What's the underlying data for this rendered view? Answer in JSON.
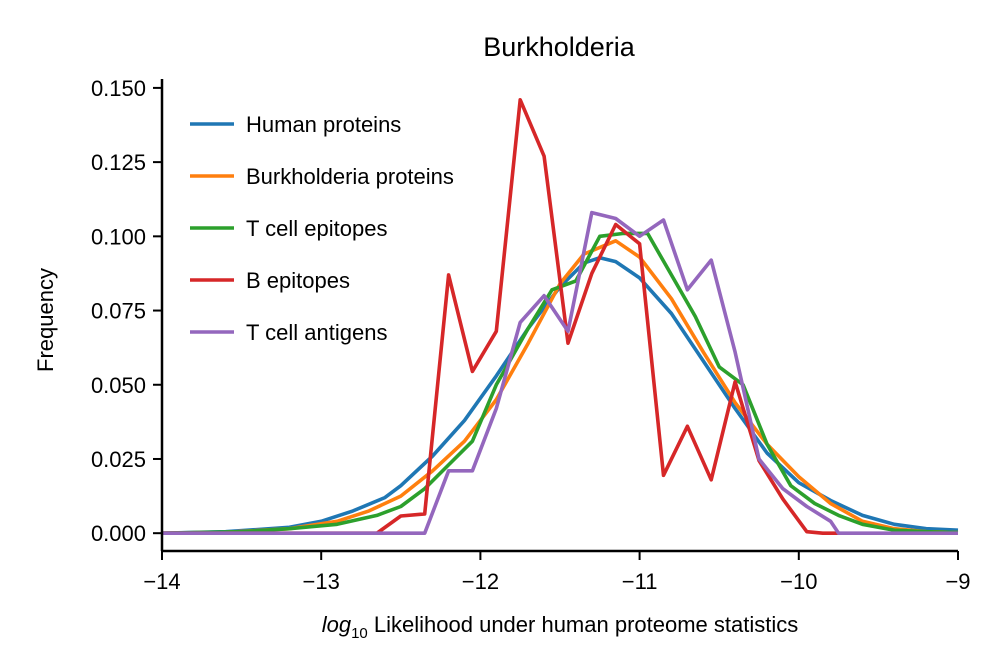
{
  "chart_data": {
    "type": "line",
    "title": "Burkholderia",
    "xlabel": {
      "prefix": "log",
      "subscript": "10",
      "text": " Likelihood under human proteome statistics"
    },
    "ylabel": "Frequency",
    "xlim": [
      -14,
      -9
    ],
    "ylim": [
      -0.006,
      0.153
    ],
    "xticks": [
      -14,
      -13,
      -12,
      -11,
      -10,
      -9
    ],
    "xtick_labels": [
      "−14",
      "−13",
      "−12",
      "−11",
      "−10",
      "−9"
    ],
    "yticks": [
      0.0,
      0.025,
      0.05,
      0.075,
      0.1,
      0.125,
      0.15
    ],
    "ytick_labels": [
      "0.000",
      "0.025",
      "0.050",
      "0.075",
      "0.100",
      "0.125",
      "0.150"
    ],
    "grid": false,
    "legend_position": "upper-left",
    "series": [
      {
        "name": "Human proteins",
        "color": "#1f77b4",
        "x": [
          -14,
          -13.6,
          -13.2,
          -13.0,
          -12.8,
          -12.6,
          -12.5,
          -12.3,
          -12.1,
          -11.9,
          -11.7,
          -11.5,
          -11.35,
          -11.25,
          -11.15,
          -11.0,
          -10.8,
          -10.6,
          -10.4,
          -10.2,
          -10.0,
          -9.8,
          -9.6,
          -9.4,
          -9.2,
          -9.0
        ],
        "y": [
          0,
          0.0005,
          0.002,
          0.004,
          0.0075,
          0.012,
          0.016,
          0.026,
          0.038,
          0.053,
          0.069,
          0.083,
          0.091,
          0.0928,
          0.0915,
          0.086,
          0.074,
          0.058,
          0.042,
          0.027,
          0.017,
          0.011,
          0.006,
          0.003,
          0.0015,
          0.001
        ]
      },
      {
        "name": "Burkholderia proteins",
        "color": "#ff7f0e",
        "x": [
          -14,
          -13.6,
          -13.2,
          -12.9,
          -12.7,
          -12.5,
          -12.3,
          -12.1,
          -11.9,
          -11.7,
          -11.5,
          -11.35,
          -11.15,
          -11.0,
          -10.8,
          -10.6,
          -10.4,
          -10.2,
          -10.0,
          -9.8,
          -9.6,
          -9.4,
          -9.2,
          -9.0
        ],
        "y": [
          0,
          0.0003,
          0.0015,
          0.004,
          0.0075,
          0.0125,
          0.021,
          0.031,
          0.045,
          0.064,
          0.084,
          0.094,
          0.0985,
          0.093,
          0.079,
          0.061,
          0.044,
          0.03,
          0.019,
          0.01,
          0.004,
          0.0015,
          0.0005,
          0.0002
        ]
      },
      {
        "name": "T cell epitopes",
        "color": "#2ca02c",
        "x": [
          -14,
          -13.5,
          -13.2,
          -12.9,
          -12.65,
          -12.5,
          -12.35,
          -12.2,
          -12.05,
          -11.9,
          -11.7,
          -11.55,
          -11.4,
          -11.25,
          -11.1,
          -10.95,
          -10.8,
          -10.65,
          -10.5,
          -10.35,
          -10.2,
          -10.05,
          -9.9,
          -9.75,
          -9.6,
          -9.4,
          -9.2,
          -9.0
        ],
        "y": [
          0,
          0.0005,
          0.0015,
          0.003,
          0.006,
          0.009,
          0.015,
          0.023,
          0.031,
          0.05,
          0.069,
          0.082,
          0.085,
          0.1,
          0.101,
          0.101,
          0.087,
          0.073,
          0.056,
          0.05,
          0.03,
          0.016,
          0.01,
          0.006,
          0.003,
          0.001,
          0.0005,
          0.0002
        ]
      },
      {
        "name": "B epitopes",
        "color": "#d62728",
        "x": [
          -14,
          -12.65,
          -12.5,
          -12.35,
          -12.2,
          -12.05,
          -11.9,
          -11.75,
          -11.6,
          -11.45,
          -11.3,
          -11.15,
          -11.0,
          -10.85,
          -10.7,
          -10.55,
          -10.4,
          -10.25,
          -10.1,
          -9.95,
          -9.85,
          -9.75
        ],
        "y": [
          0,
          0,
          0.0058,
          0.0065,
          0.087,
          0.0545,
          0.068,
          0.146,
          0.127,
          0.064,
          0.0875,
          0.104,
          0.0975,
          0.0195,
          0.036,
          0.018,
          0.051,
          0.0245,
          0.0115,
          0.0005,
          0,
          0
        ]
      },
      {
        "name": "T cell antigens",
        "color": "#9467bd",
        "x": [
          -14,
          -12.35,
          -12.2,
          -12.05,
          -11.9,
          -11.75,
          -11.6,
          -11.45,
          -11.3,
          -11.15,
          -11.0,
          -10.85,
          -10.7,
          -10.55,
          -10.4,
          -10.25,
          -10.1,
          -9.95,
          -9.8,
          -9.75,
          -9.0
        ],
        "y": [
          0,
          0,
          0.021,
          0.021,
          0.042,
          0.071,
          0.08,
          0.068,
          0.108,
          0.106,
          0.1,
          0.1055,
          0.082,
          0.092,
          0.061,
          0.025,
          0.015,
          0.009,
          0.004,
          0,
          0
        ]
      }
    ]
  }
}
